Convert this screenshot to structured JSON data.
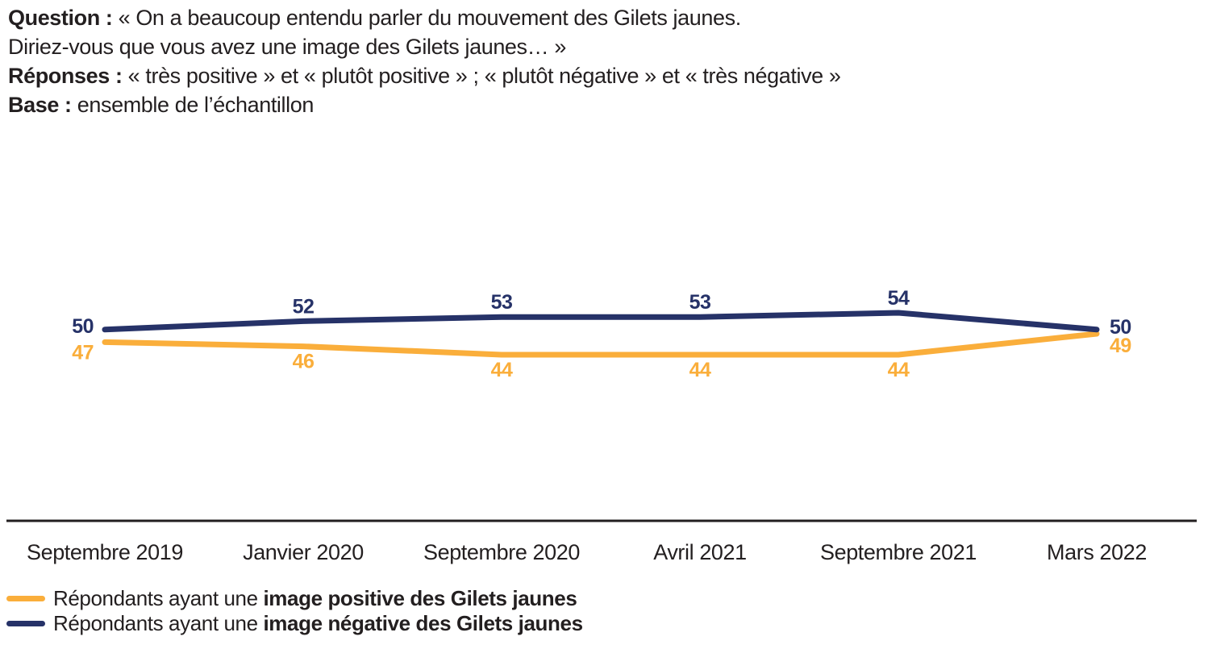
{
  "header": {
    "question_label": "Question :",
    "question_text": "« On a beaucoup entendu parler du mouvement des Gilets jaunes.",
    "question_line2": "Diriez-vous que vous avez une image des Gilets jaunes… »",
    "responses_label": "Réponses :",
    "responses_text": "« très positive » et « plutôt positive » ; « plutôt négative » et « très négative »",
    "base_label": "Base :",
    "base_text": "ensemble de l’échantillon"
  },
  "chart_data": {
    "type": "line",
    "categories": [
      "Septembre 2019",
      "Janvier 2020",
      "Septembre 2020",
      "Avril 2021",
      "Septembre 2021",
      "Mars 2022"
    ],
    "series": [
      {
        "name": "Répondants ayant une image positive des Gilets jaunes",
        "values": [
          47,
          46,
          44,
          44,
          44,
          49
        ],
        "color": "#FAAE3B",
        "label_position": "below"
      },
      {
        "name": "Répondants ayant une image négative des Gilets jaunes",
        "values": [
          50,
          52,
          53,
          53,
          54,
          50
        ],
        "color": "#263268",
        "label_position": "above"
      }
    ],
    "title": "",
    "xlabel": "",
    "ylabel": "",
    "ylim": [
      40,
      58
    ],
    "grid": false,
    "value_labels": true,
    "legend_position": "bottom-left"
  },
  "legend": {
    "items": [
      {
        "prefix": "Répondants ayant une ",
        "bold": "image positive des Gilets jaunes",
        "color": "#FAAE3B"
      },
      {
        "prefix": "Répondants ayant une ",
        "bold": "image négative des Gilets jaunes",
        "color": "#263268"
      }
    ]
  },
  "colors": {
    "text": "#231F20",
    "axis": "#231F20",
    "positive": "#FAAE3B",
    "negative": "#263268"
  }
}
